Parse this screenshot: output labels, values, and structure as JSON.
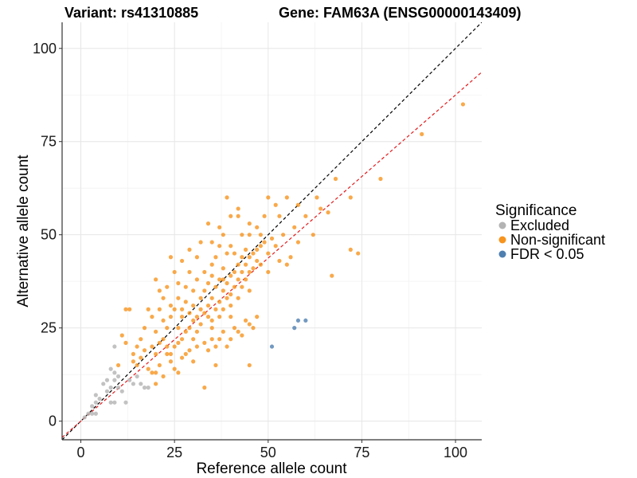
{
  "titles": {
    "variant": "Variant: rs41310885",
    "gene": "Gene: FAM63A (ENSG00000143409)"
  },
  "chart_data": {
    "type": "scatter",
    "xlabel": "Reference allele count",
    "ylabel": "Alternative allele count",
    "xlim": [
      -5,
      107
    ],
    "ylim": [
      -5,
      107
    ],
    "x_ticks": [
      0,
      25,
      50,
      75,
      100
    ],
    "y_ticks": [
      0,
      25,
      50,
      75,
      100
    ],
    "x_tick_labels": [
      "0",
      "25",
      "50",
      "75",
      "100"
    ],
    "y_tick_labels": [
      "0",
      "25",
      "50",
      "75",
      "100"
    ],
    "grid": true,
    "legend": {
      "title": "Significance",
      "position": "right",
      "entries": [
        "Excluded",
        "Non-significant",
        "FDR < 0.05"
      ]
    },
    "reference_lines": [
      {
        "style": "dashed",
        "color": "#000000",
        "slope": 1.0,
        "intercept": 0
      },
      {
        "style": "dashed",
        "color": "#e31a1c",
        "slope": 0.875,
        "intercept": 0
      }
    ],
    "series": [
      {
        "name": "Excluded",
        "color": "#b3b3b3",
        "points": [
          [
            2,
            2
          ],
          [
            3,
            2
          ],
          [
            4,
            2
          ],
          [
            3,
            4
          ],
          [
            4,
            5
          ],
          [
            4,
            7
          ],
          [
            5,
            6
          ],
          [
            6,
            10
          ],
          [
            7,
            8
          ],
          [
            8,
            9
          ],
          [
            8,
            14
          ],
          [
            9,
            13
          ],
          [
            9,
            11
          ],
          [
            10,
            12
          ],
          [
            9,
            20
          ],
          [
            7,
            11
          ],
          [
            8,
            5
          ],
          [
            12,
            5
          ],
          [
            9,
            5
          ],
          [
            11,
            8
          ],
          [
            10,
            9
          ],
          [
            13,
            11
          ],
          [
            14,
            10
          ],
          [
            15,
            12
          ],
          [
            17,
            9
          ],
          [
            16,
            10
          ],
          [
            18,
            9
          ],
          [
            1,
            1
          ]
        ]
      },
      {
        "name": "Non-significant",
        "color": "#f7941d",
        "points": [
          [
            12,
            30
          ],
          [
            13,
            30
          ],
          [
            11,
            23
          ],
          [
            10,
            15
          ],
          [
            14,
            18
          ],
          [
            15,
            20
          ],
          [
            15,
            15
          ],
          [
            16,
            22
          ],
          [
            17,
            25
          ],
          [
            17,
            19
          ],
          [
            18,
            14
          ],
          [
            18,
            30
          ],
          [
            19,
            20
          ],
          [
            19,
            28
          ],
          [
            20,
            24
          ],
          [
            20,
            18
          ],
          [
            20,
            13
          ],
          [
            21,
            30
          ],
          [
            21,
            35
          ],
          [
            22,
            27
          ],
          [
            22,
            33
          ],
          [
            22,
            22
          ],
          [
            23,
            20
          ],
          [
            23,
            25
          ],
          [
            23,
            36
          ],
          [
            24,
            28
          ],
          [
            24,
            31
          ],
          [
            24,
            18
          ],
          [
            25,
            30
          ],
          [
            25,
            20
          ],
          [
            25,
            40
          ],
          [
            26,
            25
          ],
          [
            26,
            33
          ],
          [
            26,
            37
          ],
          [
            27,
            22
          ],
          [
            27,
            30
          ],
          [
            27,
            28
          ],
          [
            28,
            32
          ],
          [
            28,
            24
          ],
          [
            28,
            36
          ],
          [
            29,
            29
          ],
          [
            29,
            25
          ],
          [
            29,
            40
          ],
          [
            30,
            27
          ],
          [
            30,
            35
          ],
          [
            30,
            31
          ],
          [
            30,
            22
          ],
          [
            31,
            28
          ],
          [
            31,
            44
          ],
          [
            31,
            38
          ],
          [
            32,
            30
          ],
          [
            32,
            26
          ],
          [
            32,
            33
          ],
          [
            32,
            48
          ],
          [
            33,
            35
          ],
          [
            33,
            29
          ],
          [
            33,
            40
          ],
          [
            34,
            31
          ],
          [
            34,
            37
          ],
          [
            34,
            28
          ],
          [
            34,
            53
          ],
          [
            35,
            33
          ],
          [
            35,
            39
          ],
          [
            35,
            25
          ],
          [
            35,
            42
          ],
          [
            36,
            30
          ],
          [
            36,
            36
          ],
          [
            36,
            44
          ],
          [
            37,
            32
          ],
          [
            37,
            38
          ],
          [
            37,
            28
          ],
          [
            37,
            47
          ],
          [
            38,
            35
          ],
          [
            38,
            41
          ],
          [
            38,
            30
          ],
          [
            38,
            50
          ],
          [
            39,
            37
          ],
          [
            39,
            33
          ],
          [
            39,
            45
          ],
          [
            39,
            60
          ],
          [
            40,
            39
          ],
          [
            40,
            34
          ],
          [
            40,
            47
          ],
          [
            40,
            28
          ],
          [
            41,
            40
          ],
          [
            41,
            36
          ],
          [
            41,
            45
          ],
          [
            42,
            42
          ],
          [
            42,
            38
          ],
          [
            42,
            33
          ],
          [
            42,
            55
          ],
          [
            43,
            40
          ],
          [
            43,
            44
          ],
          [
            43,
            36
          ],
          [
            44,
            42
          ],
          [
            44,
            46
          ],
          [
            44,
            38
          ],
          [
            45,
            44
          ],
          [
            45,
            40
          ],
          [
            45,
            50
          ],
          [
            46,
            45
          ],
          [
            46,
            41
          ],
          [
            47,
            46
          ],
          [
            47,
            43
          ],
          [
            47,
            52
          ],
          [
            48,
            47
          ],
          [
            48,
            42
          ],
          [
            49,
            48
          ],
          [
            49,
            55
          ],
          [
            50,
            45
          ],
          [
            50,
            60
          ],
          [
            51,
            49
          ],
          [
            52,
            47
          ],
          [
            52,
            58
          ],
          [
            53,
            43
          ],
          [
            54,
            50
          ],
          [
            55,
            60
          ],
          [
            56,
            44
          ],
          [
            57,
            52
          ],
          [
            58,
            48
          ],
          [
            60,
            55
          ],
          [
            62,
            50
          ],
          [
            64,
            57
          ],
          [
            66,
            56
          ],
          [
            67,
            39
          ],
          [
            68,
            65
          ],
          [
            72,
            60
          ],
          [
            72,
            46
          ],
          [
            74,
            45
          ],
          [
            80,
            65
          ],
          [
            91,
            77
          ],
          [
            102,
            85
          ],
          [
            19,
            13
          ],
          [
            20,
            10
          ],
          [
            21,
            15
          ],
          [
            22,
            12
          ],
          [
            23,
            18
          ],
          [
            24,
            16
          ],
          [
            25,
            14
          ],
          [
            26,
            13
          ],
          [
            27,
            17
          ],
          [
            28,
            18
          ],
          [
            29,
            19
          ],
          [
            30,
            16
          ],
          [
            31,
            20
          ],
          [
            33,
            21
          ],
          [
            34,
            19
          ],
          [
            35,
            22
          ],
          [
            36,
            20
          ],
          [
            37,
            22
          ],
          [
            38,
            24
          ],
          [
            39,
            20
          ],
          [
            40,
            22
          ],
          [
            41,
            25
          ],
          [
            42,
            24
          ],
          [
            43,
            23
          ],
          [
            44,
            27
          ],
          [
            45,
            26
          ],
          [
            46,
            25
          ],
          [
            47,
            28
          ],
          [
            33,
            9
          ],
          [
            36,
            15
          ],
          [
            45,
            15
          ],
          [
            12,
            21
          ],
          [
            14,
            16
          ],
          [
            16,
            17
          ],
          [
            21,
            21
          ],
          [
            26,
            21
          ],
          [
            31,
            24
          ],
          [
            35,
            27
          ],
          [
            40,
            31
          ],
          [
            45,
            35
          ],
          [
            50,
            40
          ],
          [
            55,
            42
          ],
          [
            38,
            38
          ],
          [
            43,
            50
          ],
          [
            48,
            50
          ],
          [
            53,
            55
          ],
          [
            58,
            58
          ],
          [
            63,
            60
          ],
          [
            35,
            48
          ],
          [
            37,
            52
          ],
          [
            40,
            55
          ],
          [
            42,
            57
          ],
          [
            45,
            53
          ],
          [
            27,
            43
          ],
          [
            29,
            46
          ],
          [
            24,
            44
          ],
          [
            20,
            38
          ]
        ]
      },
      {
        "name": "FDR < 0.05",
        "color": "#4f7fb0",
        "points": [
          [
            51,
            20
          ],
          [
            57,
            25
          ],
          [
            58,
            27
          ],
          [
            60,
            27
          ]
        ]
      }
    ]
  }
}
